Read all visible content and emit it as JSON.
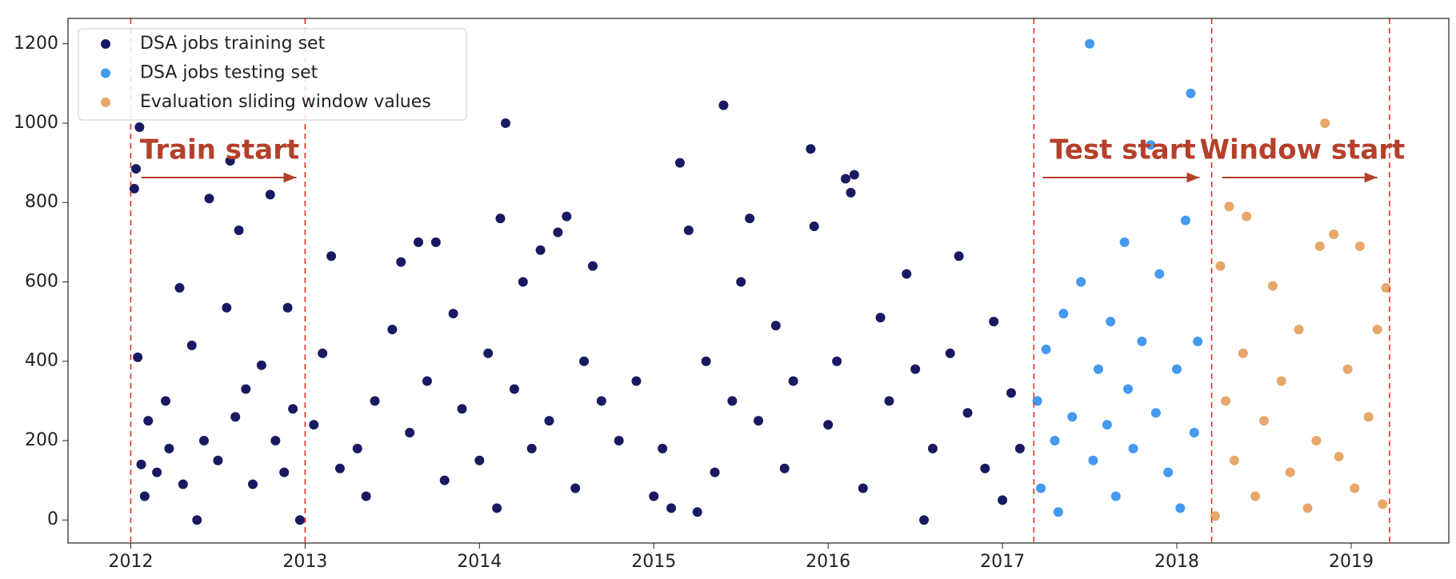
{
  "chart_data": {
    "type": "scatter",
    "xlim": [
      2011.64,
      2019.56
    ],
    "ylim": [
      -58,
      1264
    ],
    "xticks": [
      2012,
      2013,
      2014,
      2015,
      2016,
      2017,
      2018,
      2019
    ],
    "yticks": [
      0,
      200,
      400,
      600,
      800,
      1000,
      1200
    ],
    "legend": "upper left",
    "series": [
      {
        "name": "DSA jobs training set",
        "color": "#181a61",
        "x": [
          2012.02,
          2012.03,
          2012.05,
          2012.04,
          2012.06,
          2012.08,
          2012.1,
          2012.15,
          2012.2,
          2012.22,
          2012.28,
          2012.3,
          2012.35,
          2012.38,
          2012.42,
          2012.45,
          2012.5,
          2012.55,
          2012.57,
          2012.6,
          2012.62,
          2012.66,
          2012.7,
          2012.75,
          2012.8,
          2012.83,
          2012.88,
          2012.9,
          2012.93,
          2012.97,
          2013.05,
          2013.1,
          2013.15,
          2013.2,
          2013.3,
          2013.35,
          2013.4,
          2013.5,
          2013.55,
          2013.6,
          2013.65,
          2013.7,
          2013.75,
          2013.8,
          2013.85,
          2013.9,
          2014.0,
          2014.05,
          2014.1,
          2014.12,
          2014.15,
          2014.2,
          2014.25,
          2014.3,
          2014.35,
          2014.4,
          2014.45,
          2014.5,
          2014.55,
          2014.6,
          2014.65,
          2014.7,
          2014.8,
          2014.9,
          2015.0,
          2015.05,
          2015.1,
          2015.15,
          2015.2,
          2015.25,
          2015.3,
          2015.35,
          2015.4,
          2015.45,
          2015.5,
          2015.55,
          2015.6,
          2015.7,
          2015.75,
          2015.8,
          2015.9,
          2015.92,
          2016.0,
          2016.05,
          2016.1,
          2016.13,
          2016.15,
          2016.2,
          2016.3,
          2016.35,
          2016.45,
          2016.5,
          2016.55,
          2016.6,
          2016.7,
          2016.75,
          2016.8,
          2016.9,
          2016.95,
          2017.0,
          2017.05,
          2017.1
        ],
        "values": [
          835,
          885,
          990,
          410,
          140,
          60,
          250,
          120,
          300,
          180,
          585,
          90,
          440,
          0,
          200,
          810,
          150,
          535,
          905,
          260,
          730,
          330,
          90,
          390,
          820,
          200,
          120,
          535,
          280,
          0,
          240,
          420,
          665,
          130,
          180,
          60,
          300,
          480,
          650,
          220,
          700,
          350,
          700,
          100,
          520,
          280,
          150,
          420,
          30,
          760,
          1000,
          330,
          600,
          180,
          680,
          250,
          725,
          765,
          80,
          400,
          640,
          300,
          200,
          350,
          60,
          180,
          30,
          900,
          730,
          20,
          400,
          120,
          1045,
          300,
          600,
          760,
          250,
          490,
          130,
          350,
          935,
          740,
          240,
          400,
          860,
          825,
          870,
          80,
          510,
          300,
          620,
          380,
          0,
          180,
          420,
          665,
          270,
          130,
          500,
          50,
          320,
          180
        ]
      },
      {
        "name": "DSA jobs testing set",
        "color": "#4499f0",
        "x": [
          2017.2,
          2017.22,
          2017.25,
          2017.3,
          2017.32,
          2017.35,
          2017.4,
          2017.45,
          2017.5,
          2017.52,
          2017.55,
          2017.6,
          2017.62,
          2017.65,
          2017.7,
          2017.72,
          2017.75,
          2017.8,
          2017.85,
          2017.88,
          2017.9,
          2017.95,
          2018.0,
          2018.02,
          2018.05,
          2018.08,
          2018.1,
          2018.12
        ],
        "values": [
          300,
          80,
          430,
          200,
          20,
          520,
          260,
          600,
          1200,
          150,
          380,
          240,
          500,
          60,
          700,
          330,
          180,
          450,
          945,
          270,
          620,
          120,
          380,
          30,
          755,
          1075,
          220,
          450
        ]
      },
      {
        "name": "Evaluation sliding window values",
        "color": "#e8a76a",
        "x": [
          2018.22,
          2018.25,
          2018.28,
          2018.3,
          2018.33,
          2018.38,
          2018.4,
          2018.45,
          2018.5,
          2018.55,
          2018.6,
          2018.65,
          2018.7,
          2018.75,
          2018.8,
          2018.82,
          2018.85,
          2018.9,
          2018.93,
          2018.98,
          2019.02,
          2019.05,
          2019.1,
          2019.15,
          2019.18,
          2019.2
        ],
        "values": [
          10,
          640,
          300,
          790,
          150,
          420,
          765,
          60,
          250,
          590,
          350,
          120,
          480,
          30,
          200,
          690,
          1000,
          720,
          160,
          380,
          80,
          690,
          260,
          480,
          40,
          585
        ]
      }
    ],
    "vlines": [
      2012.0,
      2013.0,
      2017.18,
      2018.2,
      2019.22
    ],
    "vline_color": "#e8241a",
    "annotations": [
      {
        "text": "Train start",
        "x": 2012.51,
        "y": 929,
        "arrow_from": 2012.06,
        "arrow_to": 2012.95,
        "arrow_y": 863
      },
      {
        "text": "Test start",
        "x": 2017.69,
        "y": 929,
        "arrow_from": 2017.23,
        "arrow_to": 2018.13,
        "arrow_y": 863
      },
      {
        "text": "Window start",
        "x": 2018.72,
        "y": 929,
        "arrow_from": 2018.26,
        "arrow_to": 2019.15,
        "arrow_y": 863
      }
    ],
    "annotation_color": "#b5402a"
  }
}
